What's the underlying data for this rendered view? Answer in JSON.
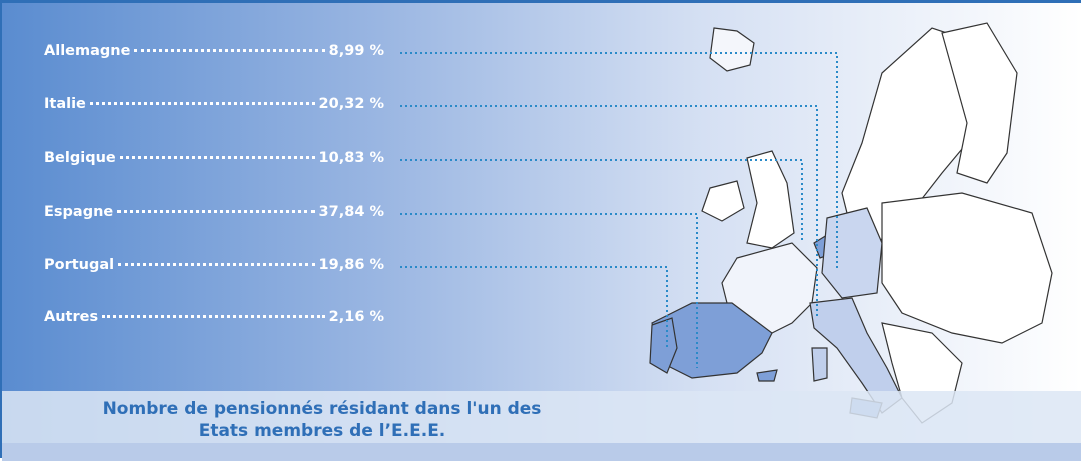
{
  "items": [
    {
      "label": "Allemagne",
      "value": "8,99 %"
    },
    {
      "label": "Italie",
      "value": "20,32 %"
    },
    {
      "label": "Belgique",
      "value": "10,83 %"
    },
    {
      "label": "Espagne",
      "value": "37,84 %"
    },
    {
      "label": "Portugal",
      "value": "19,86 %"
    },
    {
      "label": "Autres",
      "value": "2,16 %"
    }
  ],
  "caption": [
    "Nombre de pensionnés résidant dans l'un des",
    "Etats membres de l’E.E.E."
  ]
}
